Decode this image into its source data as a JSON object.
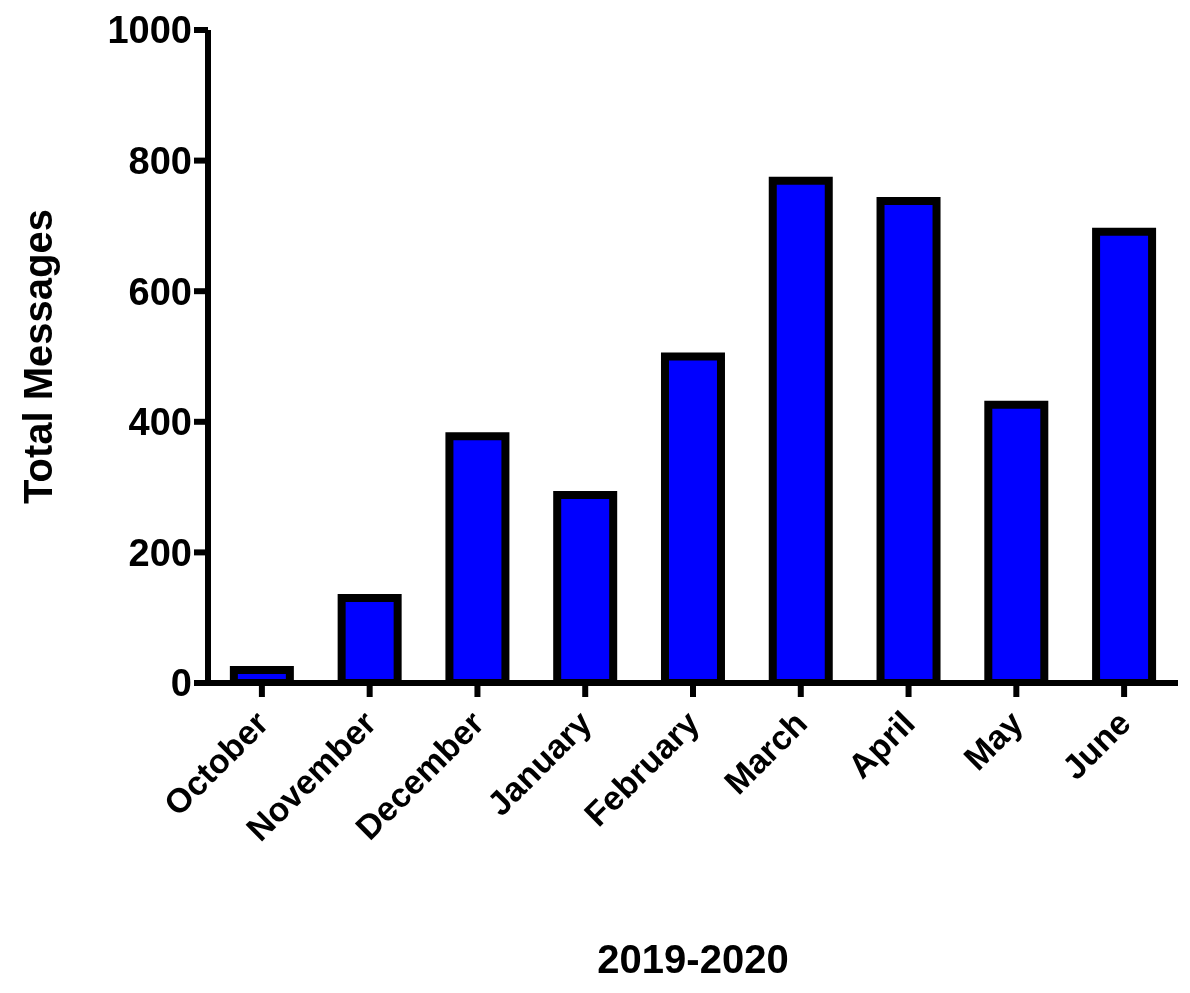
{
  "chart_data": {
    "type": "bar",
    "xlabel": "2019-2020",
    "ylabel": "Total Messages",
    "categories": [
      "October",
      "November",
      "December",
      "January",
      "February",
      "March",
      "April",
      "May",
      "June"
    ],
    "values": [
      20,
      130,
      378,
      288,
      500,
      769,
      738,
      426,
      691
    ],
    "color": "#0000ff",
    "ylim": [
      0,
      1000
    ],
    "yticks": [
      0,
      200,
      400,
      600,
      800,
      1000
    ],
    "grid": false,
    "legend": false
  }
}
